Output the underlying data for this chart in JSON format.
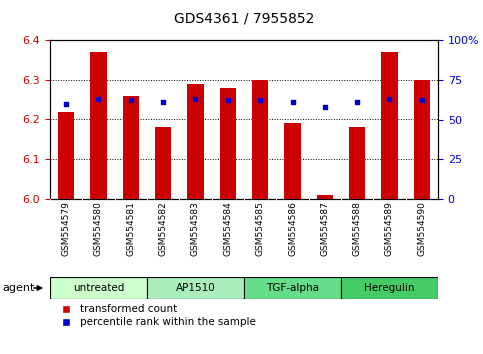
{
  "title": "GDS4361 / 7955852",
  "samples": [
    "GSM554579",
    "GSM554580",
    "GSM554581",
    "GSM554582",
    "GSM554583",
    "GSM554584",
    "GSM554585",
    "GSM554586",
    "GSM554587",
    "GSM554588",
    "GSM554589",
    "GSM554590"
  ],
  "bar_values": [
    6.22,
    6.37,
    6.26,
    6.18,
    6.29,
    6.28,
    6.3,
    6.19,
    6.01,
    6.18,
    6.37,
    6.3
  ],
  "percentile_values": [
    60,
    63,
    62,
    61,
    63,
    62,
    62,
    61,
    58,
    61,
    63,
    62
  ],
  "ylim_left": [
    6.0,
    6.4
  ],
  "ylim_right": [
    0,
    100
  ],
  "yticks_left": [
    6.0,
    6.1,
    6.2,
    6.3,
    6.4
  ],
  "yticks_right": [
    0,
    25,
    50,
    75,
    100
  ],
  "ytick_labels_right": [
    "0",
    "25",
    "50",
    "75",
    "100%"
  ],
  "bar_color": "#cc0000",
  "dot_color": "#0000cc",
  "bar_base": 6.0,
  "grid_values": [
    6.1,
    6.2,
    6.3
  ],
  "groups": [
    {
      "label": "untreated",
      "start": 0,
      "end": 3,
      "color": "#ccffcc"
    },
    {
      "label": "AP1510",
      "start": 3,
      "end": 6,
      "color": "#aaeebb"
    },
    {
      "label": "TGF-alpha",
      "start": 6,
      "end": 9,
      "color": "#66dd88"
    },
    {
      "label": "Heregulin",
      "start": 9,
      "end": 12,
      "color": "#44cc66"
    }
  ],
  "legend_bar_label": "transformed count",
  "legend_dot_label": "percentile rank within the sample",
  "agent_label": "agent",
  "background_color": "#ffffff",
  "tick_color_left": "#cc0000",
  "tick_color_right": "#0000cc",
  "xtick_bg_color": "#bbbbbb",
  "bar_width": 0.5
}
